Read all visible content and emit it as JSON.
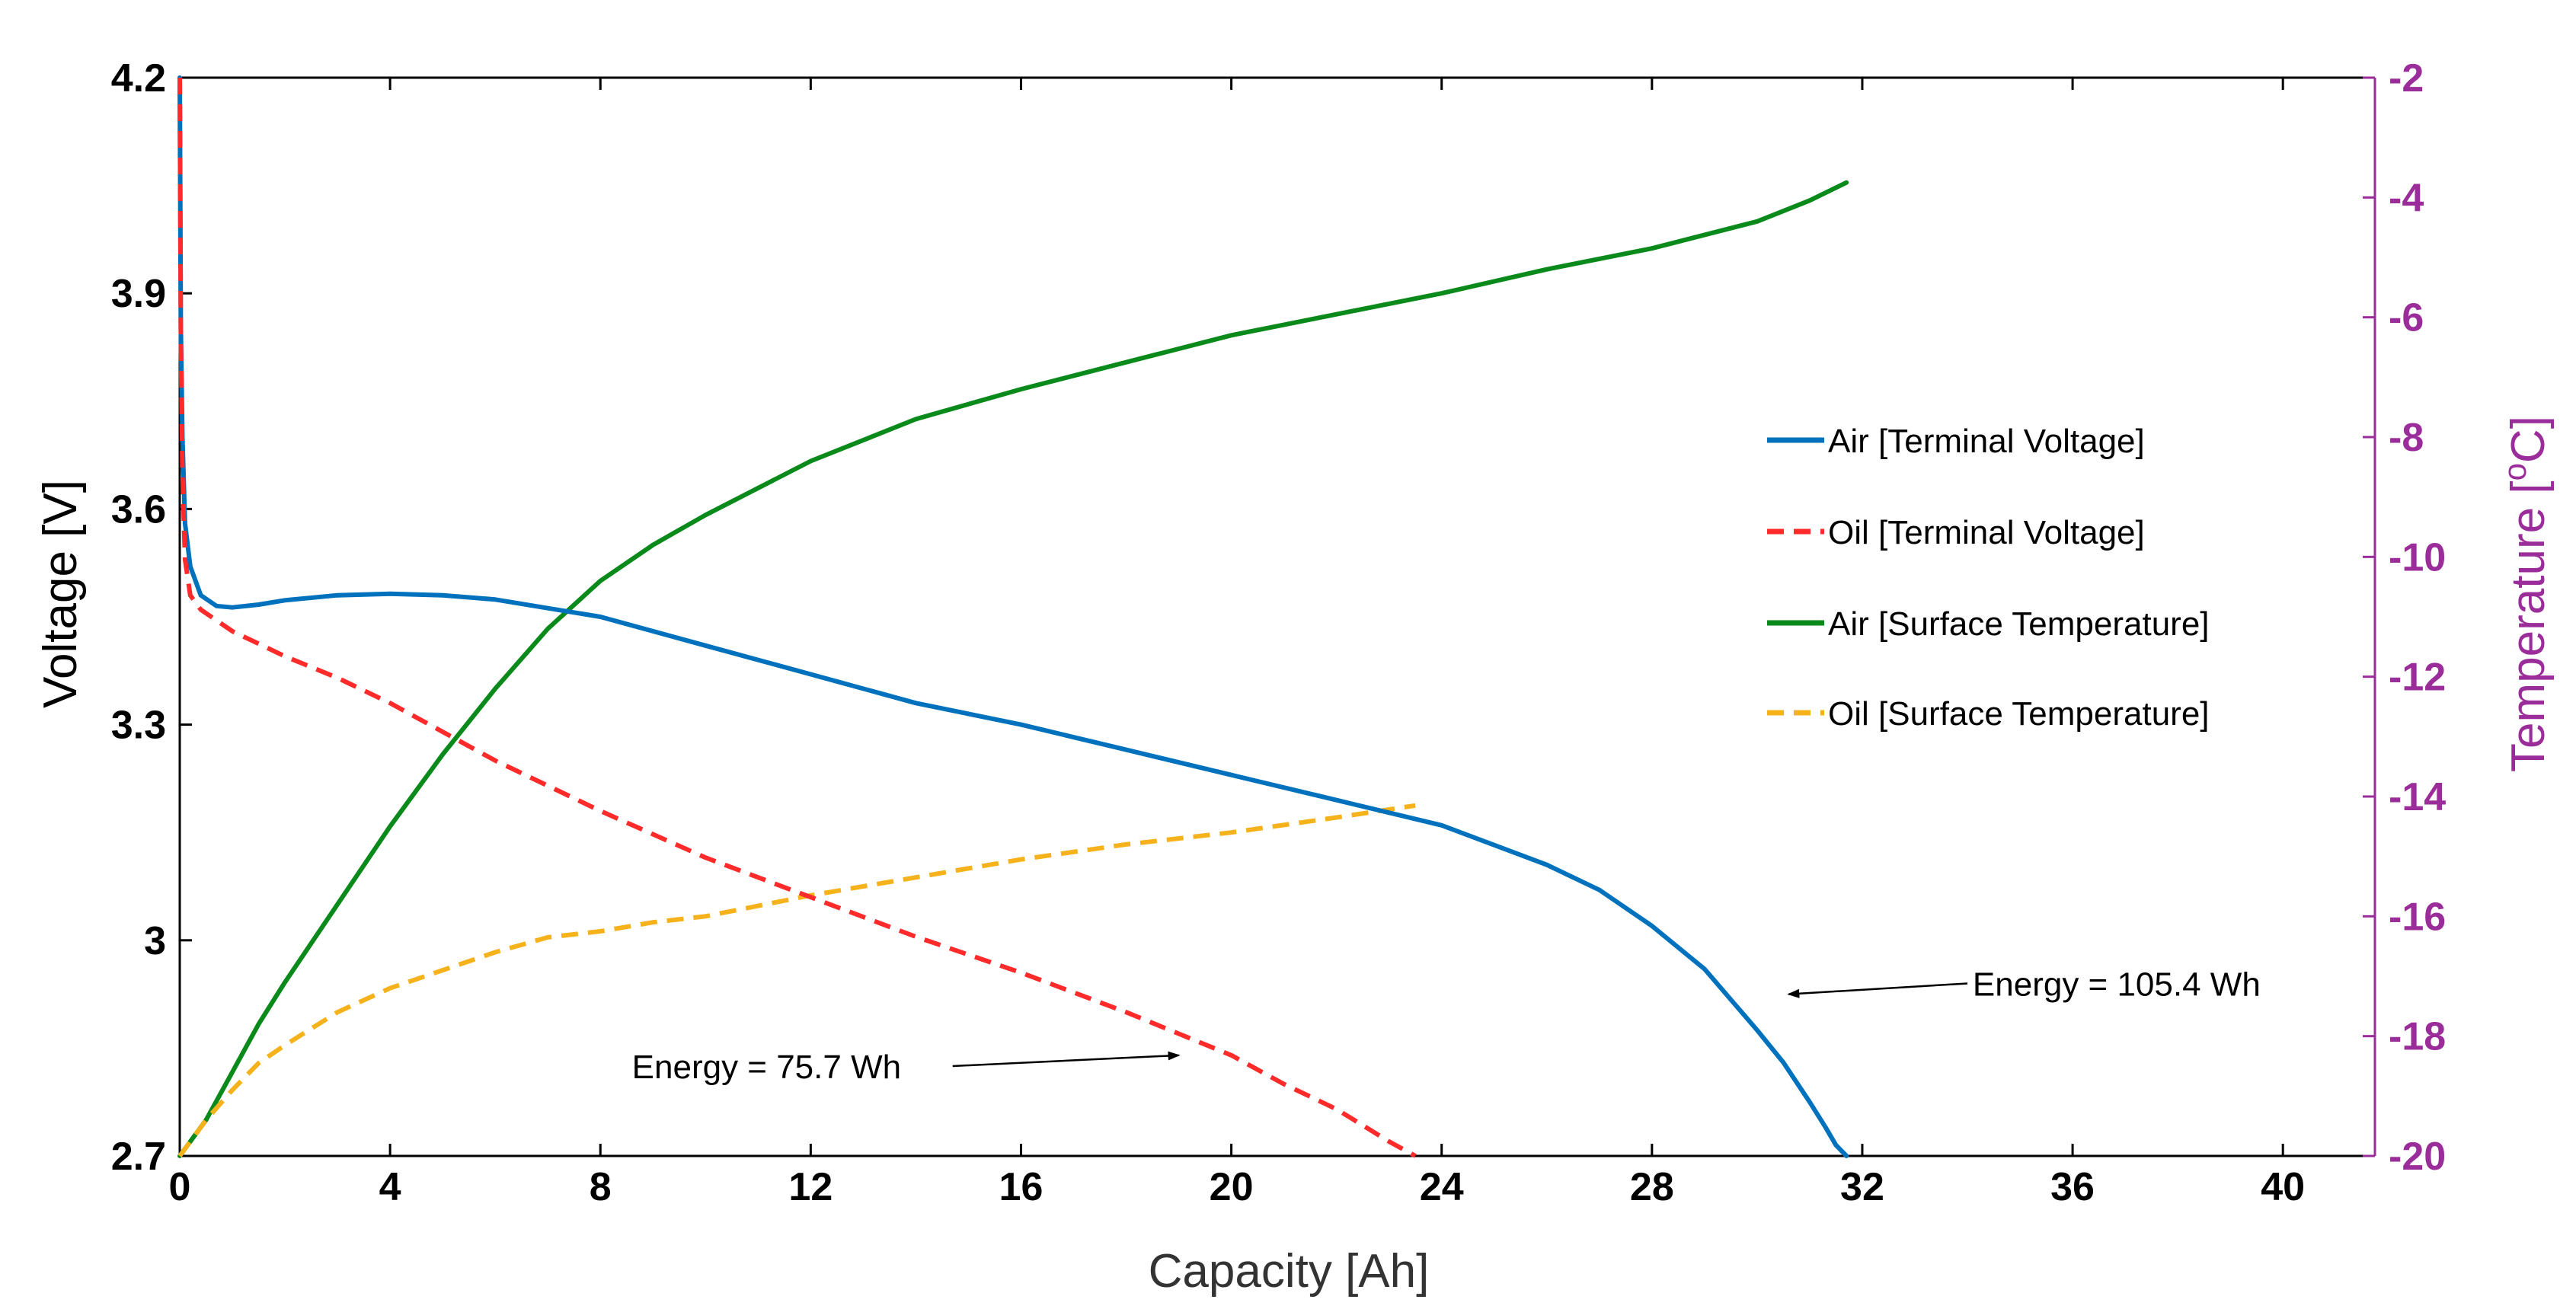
{
  "chart_data": {
    "type": "line",
    "title": "",
    "xlabel": "Capacity [Ah]",
    "ylabel": "Voltage [V]",
    "y2label_main": "Temperature [",
    "y2label_sup": "o",
    "y2label_end": "C]",
    "xlim": [
      0,
      41.75
    ],
    "ylim": [
      2.7,
      4.2
    ],
    "y2lim": [
      -20,
      -2
    ],
    "xticks": [
      0,
      4,
      8,
      12,
      16,
      20,
      24,
      28,
      32,
      36,
      40
    ],
    "xtick_labels": [
      "0",
      "4",
      "8",
      "12",
      "16",
      "20",
      "24",
      "28",
      "32",
      "36",
      "40"
    ],
    "yticks": [
      2.7,
      3.0,
      3.3,
      3.6,
      3.9,
      4.2
    ],
    "ytick_labels": [
      "2.7",
      "3",
      "3.3",
      "3.6",
      "3.9",
      "4.2"
    ],
    "y2ticks": [
      -20,
      -18,
      -16,
      -14,
      -12,
      -10,
      -8,
      -6,
      -4,
      -2
    ],
    "y2tick_labels": [
      "-20",
      "-18",
      "-16",
      "-14",
      "-12",
      "-10",
      "-8",
      "-6",
      "-4",
      "-2"
    ],
    "grid": false,
    "legend_position": "center-right",
    "colors": {
      "axis_left": "#000000",
      "axis_right": "#9b2d9b",
      "air_voltage": "#0072bd",
      "oil_voltage": "#ff2a2a",
      "air_temp": "#0a8a1a",
      "oil_temp": "#f5b21a"
    },
    "series": [
      {
        "name": "Air [Terminal Voltage]",
        "axis": "left",
        "style": "solid",
        "color_key": "air_voltage",
        "x": [
          0,
          0.02,
          0.05,
          0.1,
          0.2,
          0.4,
          0.7,
          1.0,
          1.5,
          2,
          3,
          4,
          5,
          6,
          8,
          10,
          12,
          14,
          16,
          18,
          20,
          22,
          24,
          26,
          27,
          28,
          29,
          30,
          30.5,
          31,
          31.3,
          31.5,
          31.7
        ],
        "y": [
          4.2,
          3.85,
          3.7,
          3.58,
          3.52,
          3.48,
          3.465,
          3.463,
          3.467,
          3.473,
          3.48,
          3.482,
          3.48,
          3.474,
          3.45,
          3.41,
          3.37,
          3.33,
          3.3,
          3.265,
          3.23,
          3.195,
          3.16,
          3.105,
          3.07,
          3.02,
          2.96,
          2.875,
          2.83,
          2.775,
          2.74,
          2.715,
          2.7
        ]
      },
      {
        "name": "Oil [Terminal Voltage]",
        "axis": "left",
        "style": "dashed",
        "color_key": "oil_voltage",
        "x": [
          0,
          0.02,
          0.05,
          0.1,
          0.2,
          0.4,
          0.7,
          1,
          2,
          3,
          4,
          5,
          6,
          8,
          10,
          12,
          14,
          16,
          18,
          19,
          20,
          21,
          22,
          23,
          23.5
        ],
        "y": [
          4.2,
          3.85,
          3.65,
          3.53,
          3.48,
          3.46,
          3.445,
          3.43,
          3.395,
          3.365,
          3.33,
          3.29,
          3.25,
          3.18,
          3.115,
          3.06,
          3.005,
          2.955,
          2.9,
          2.87,
          2.84,
          2.8,
          2.765,
          2.72,
          2.7
        ]
      },
      {
        "name": "Air [Surface Temperature]",
        "axis": "right",
        "style": "solid",
        "color_key": "air_temp",
        "x": [
          0,
          0.5,
          1,
          1.5,
          2,
          3,
          4,
          5,
          6,
          7,
          8,
          9,
          10,
          12,
          14,
          16,
          18,
          20,
          22,
          24,
          26,
          28,
          30,
          31,
          31.7
        ],
        "y": [
          -20,
          -19.4,
          -18.6,
          -17.8,
          -17.1,
          -15.8,
          -14.5,
          -13.3,
          -12.2,
          -11.2,
          -10.4,
          -9.8,
          -9.3,
          -8.4,
          -7.7,
          -7.2,
          -6.75,
          -6.3,
          -5.95,
          -5.6,
          -5.2,
          -4.85,
          -4.4,
          -4.05,
          -3.75
        ]
      },
      {
        "name": "Oil [Surface Temperature]",
        "axis": "right",
        "style": "dashed",
        "color_key": "oil_temp",
        "x": [
          0,
          0.5,
          1,
          1.5,
          2,
          3,
          4,
          5,
          6,
          7,
          8,
          9,
          10,
          12,
          14,
          16,
          18,
          20,
          22,
          23.5
        ],
        "y": [
          -20,
          -19.4,
          -18.9,
          -18.45,
          -18.15,
          -17.6,
          -17.2,
          -16.9,
          -16.6,
          -16.35,
          -16.25,
          -16.1,
          -16.0,
          -15.65,
          -15.35,
          -15.05,
          -14.8,
          -14.6,
          -14.35,
          -14.15
        ]
      }
    ],
    "annotations": [
      {
        "text": "Energy = 75.7 Wh",
        "target_x": 19.0,
        "target_y": 2.84,
        "text_x": 8.6,
        "text_y": 2.825,
        "tail_x": 14.7,
        "align": "end"
      },
      {
        "text": "Energy = 105.4 Wh",
        "target_x": 30.6,
        "target_y": 2.925,
        "text_x": 34.1,
        "text_y": 2.94,
        "tail_x": 34.0,
        "align": "start"
      }
    ]
  }
}
